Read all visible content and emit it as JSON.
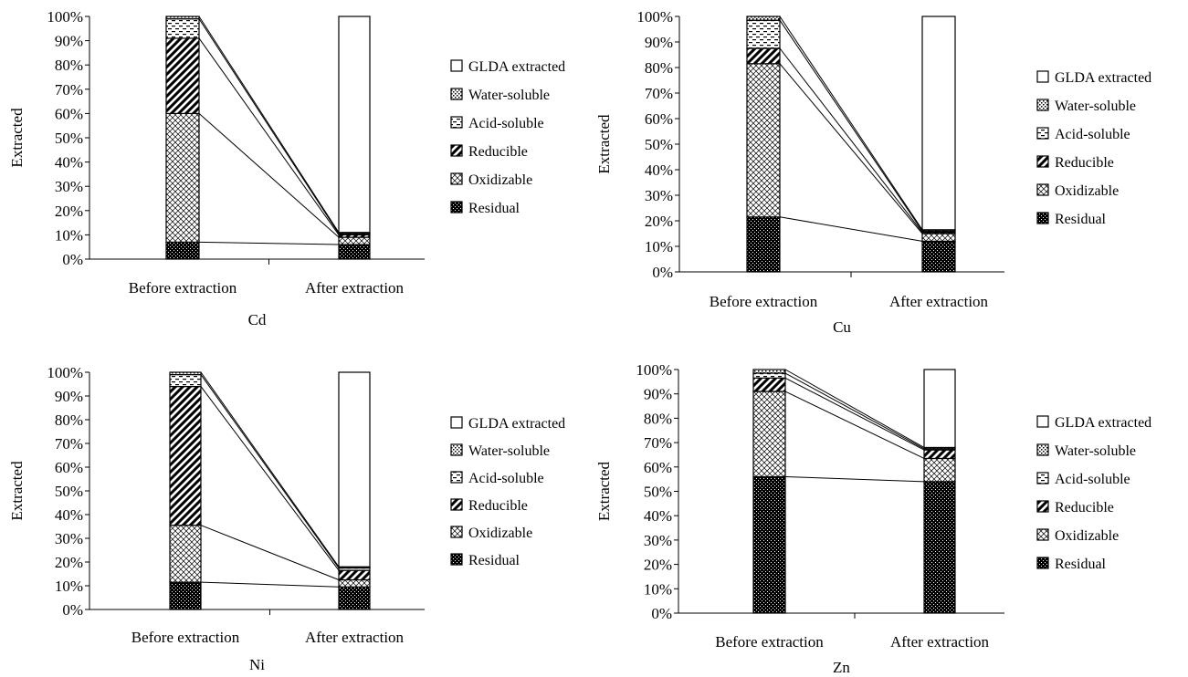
{
  "figure": {
    "legend": {
      "entries": [
        {
          "key": "glda",
          "label": "GLDA extracted"
        },
        {
          "key": "water",
          "label": "Water-soluble"
        },
        {
          "key": "acid",
          "label": "Acid-soluble"
        },
        {
          "key": "reducible",
          "label": "Reducible"
        },
        {
          "key": "oxidizable",
          "label": "Oxidizable"
        },
        {
          "key": "residual",
          "label": "Residual"
        }
      ]
    }
  },
  "chart_data": [
    {
      "type": "bar",
      "stacked": true,
      "title": "Cd",
      "ylabel": "Extracted",
      "ylim": [
        0,
        100
      ],
      "yticks": [
        "0%",
        "10%",
        "20%",
        "30%",
        "40%",
        "50%",
        "60%",
        "70%",
        "80%",
        "90%",
        "100%"
      ],
      "categories": [
        "Before extraction",
        "After extraction"
      ],
      "legend_position": "right",
      "series": [
        {
          "key": "residual",
          "name": "Residual",
          "values": [
            7,
            6
          ]
        },
        {
          "key": "oxidizable",
          "name": "Oxidizable",
          "values": [
            53,
            3
          ]
        },
        {
          "key": "reducible",
          "name": "Reducible",
          "values": [
            31,
            1
          ]
        },
        {
          "key": "acid",
          "name": "Acid-soluble",
          "values": [
            8,
            0.5
          ]
        },
        {
          "key": "water",
          "name": "Water-soluble",
          "values": [
            1,
            0.5
          ]
        },
        {
          "key": "glda",
          "name": "GLDA extracted",
          "values": [
            0,
            89
          ]
        }
      ]
    },
    {
      "type": "bar",
      "stacked": true,
      "title": "Cu",
      "ylabel": "Extracted",
      "ylim": [
        0,
        100
      ],
      "yticks": [
        "0%",
        "10%",
        "20%",
        "30%",
        "40%",
        "50%",
        "60%",
        "70%",
        "80%",
        "90%",
        "100%"
      ],
      "categories": [
        "Before extraction",
        "After extraction"
      ],
      "legend_position": "right",
      "series": [
        {
          "key": "residual",
          "name": "Residual",
          "values": [
            21.5,
            12
          ]
        },
        {
          "key": "oxidizable",
          "name": "Oxidizable",
          "values": [
            60,
            3
          ]
        },
        {
          "key": "reducible",
          "name": "Reducible",
          "values": [
            6,
            0.5
          ]
        },
        {
          "key": "acid",
          "name": "Acid-soluble",
          "values": [
            11,
            0.5
          ]
        },
        {
          "key": "water",
          "name": "Water-soluble",
          "values": [
            1.5,
            0.5
          ]
        },
        {
          "key": "glda",
          "name": "GLDA extracted",
          "values": [
            0,
            83.5
          ]
        }
      ]
    },
    {
      "type": "bar",
      "stacked": true,
      "title": "Ni",
      "ylabel": "Extracted",
      "ylim": [
        0,
        100
      ],
      "yticks": [
        "0%",
        "10%",
        "20%",
        "30%",
        "40%",
        "50%",
        "60%",
        "70%",
        "80%",
        "90%",
        "100%"
      ],
      "categories": [
        "Before extraction",
        "After extraction"
      ],
      "legend_position": "right",
      "series": [
        {
          "key": "residual",
          "name": "Residual",
          "values": [
            11.5,
            9.5
          ]
        },
        {
          "key": "oxidizable",
          "name": "Oxidizable",
          "values": [
            24,
            3
          ]
        },
        {
          "key": "reducible",
          "name": "Reducible",
          "values": [
            58.5,
            4
          ]
        },
        {
          "key": "acid",
          "name": "Acid-soluble",
          "values": [
            5,
            1
          ]
        },
        {
          "key": "water",
          "name": "Water-soluble",
          "values": [
            1,
            0.5
          ]
        },
        {
          "key": "glda",
          "name": "GLDA extracted",
          "values": [
            0,
            82
          ]
        }
      ]
    },
    {
      "type": "bar",
      "stacked": true,
      "title": "Zn",
      "ylabel": "Extracted",
      "ylim": [
        0,
        100
      ],
      "yticks": [
        "0%",
        "10%",
        "20%",
        "30%",
        "40%",
        "50%",
        "60%",
        "70%",
        "80%",
        "90%",
        "100%"
      ],
      "categories": [
        "Before extraction",
        "After extraction"
      ],
      "legend_position": "right",
      "series": [
        {
          "key": "residual",
          "name": "Residual",
          "values": [
            56,
            54
          ]
        },
        {
          "key": "oxidizable",
          "name": "Oxidizable",
          "values": [
            35,
            9.5
          ]
        },
        {
          "key": "reducible",
          "name": "Reducible",
          "values": [
            5.5,
            3.5
          ]
        },
        {
          "key": "acid",
          "name": "Acid-soluble",
          "values": [
            2,
            0.5
          ]
        },
        {
          "key": "water",
          "name": "Water-soluble",
          "values": [
            1.5,
            0.5
          ]
        },
        {
          "key": "glda",
          "name": "GLDA extracted",
          "values": [
            0,
            32
          ]
        }
      ]
    }
  ]
}
